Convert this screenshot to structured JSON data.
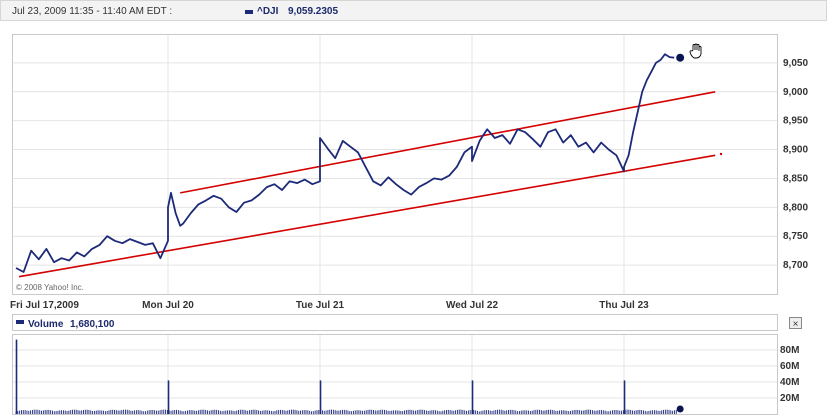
{
  "header": {
    "range_text": "Jul 23, 2009 11:35 - 11:40 AM EDT :",
    "symbol": "^DJI",
    "value": "9,059.2305",
    "series_color": "#1d2a7a"
  },
  "copyright": "© 2008 Yahoo! Inc.",
  "volume_panel": {
    "label": "Volume",
    "value": "1,680,100",
    "close_symbol": "×"
  },
  "colors": {
    "price_line": "#1d2a7a",
    "trend_line": "#d40000",
    "volume_bar": "#1d2a7a",
    "grid": "#e4e4e4"
  },
  "chart_data": [
    {
      "type": "line",
      "title": "^DJI 9,059.2305",
      "x_ticks": [
        "Fri Jul 17,2009",
        "Mon Jul 20",
        "Tue Jul 21",
        "Wed Jul 22",
        "Thu Jul 23"
      ],
      "y_ticks": [
        "8,700",
        "8,750",
        "8,800",
        "8,850",
        "8,900",
        "8,950",
        "9,000",
        "9,050"
      ],
      "ylim": [
        8650,
        9100
      ],
      "grid": true,
      "series": [
        {
          "name": "^DJI",
          "x": [
            0,
            0.05,
            0.1,
            0.15,
            0.2,
            0.25,
            0.3,
            0.35,
            0.4,
            0.45,
            0.5,
            0.55,
            0.6,
            0.65,
            0.7,
            0.75,
            0.8,
            0.85,
            0.9,
            0.95,
            1.0,
            1.0,
            1.02,
            1.05,
            1.08,
            1.1,
            1.15,
            1.2,
            1.25,
            1.3,
            1.35,
            1.4,
            1.45,
            1.5,
            1.55,
            1.6,
            1.65,
            1.7,
            1.75,
            1.8,
            1.85,
            1.9,
            1.95,
            2.0,
            2.0,
            2.05,
            2.1,
            2.15,
            2.2,
            2.25,
            2.3,
            2.35,
            2.4,
            2.45,
            2.5,
            2.55,
            2.6,
            2.65,
            2.7,
            2.75,
            2.8,
            2.85,
            2.9,
            2.95,
            3.0,
            3.0,
            3.05,
            3.1,
            3.15,
            3.2,
            3.25,
            3.3,
            3.35,
            3.4,
            3.45,
            3.5,
            3.55,
            3.6,
            3.65,
            3.7,
            3.75,
            3.8,
            3.85,
            3.9,
            3.95,
            4.0,
            4.0,
            4.03,
            4.06,
            4.09,
            4.12,
            4.15,
            4.18,
            4.21,
            4.24,
            4.27,
            4.3,
            4.33
          ],
          "values": [
            8695,
            8688,
            8725,
            8710,
            8728,
            8705,
            8712,
            8708,
            8722,
            8715,
            8728,
            8735,
            8750,
            8742,
            8738,
            8745,
            8740,
            8735,
            8738,
            8712,
            8742,
            8800,
            8825,
            8790,
            8768,
            8772,
            8790,
            8805,
            8812,
            8820,
            8815,
            8800,
            8792,
            8808,
            8812,
            8822,
            8835,
            8840,
            8830,
            8845,
            8842,
            8848,
            8840,
            8845,
            8920,
            8902,
            8885,
            8915,
            8905,
            8895,
            8870,
            8845,
            8838,
            8852,
            8840,
            8830,
            8822,
            8835,
            8842,
            8850,
            8848,
            8855,
            8870,
            8895,
            8905,
            8880,
            8915,
            8935,
            8920,
            8925,
            8910,
            8935,
            8930,
            8918,
            8905,
            8930,
            8935,
            8912,
            8925,
            8905,
            8912,
            8895,
            8912,
            8900,
            8890,
            8862,
            8870,
            8890,
            8930,
            8965,
            9000,
            9020,
            9035,
            9050,
            9055,
            9065,
            9060,
            9059
          ]
        },
        {
          "name": "Trend line upper",
          "x": [
            1.08,
            4.6
          ],
          "values": [
            8825,
            9000
          ]
        },
        {
          "name": "Trend line lower",
          "x": [
            0.02,
            4.6
          ],
          "values": [
            8680,
            8890
          ]
        }
      ]
    },
    {
      "type": "bar",
      "title": "Volume 1,680,100",
      "y_ticks": [
        "20M",
        "40M",
        "60M",
        "80M"
      ],
      "ylim": [
        0,
        100
      ],
      "values_note_unit": "M",
      "spikes": [
        {
          "x": 0.0,
          "value": 93
        },
        {
          "x": 1.0,
          "value": 42
        },
        {
          "x": 2.0,
          "value": 42
        },
        {
          "x": 3.0,
          "value": 42
        },
        {
          "x": 4.0,
          "value": 42
        }
      ],
      "baseline": 3,
      "current": 1.68
    }
  ]
}
